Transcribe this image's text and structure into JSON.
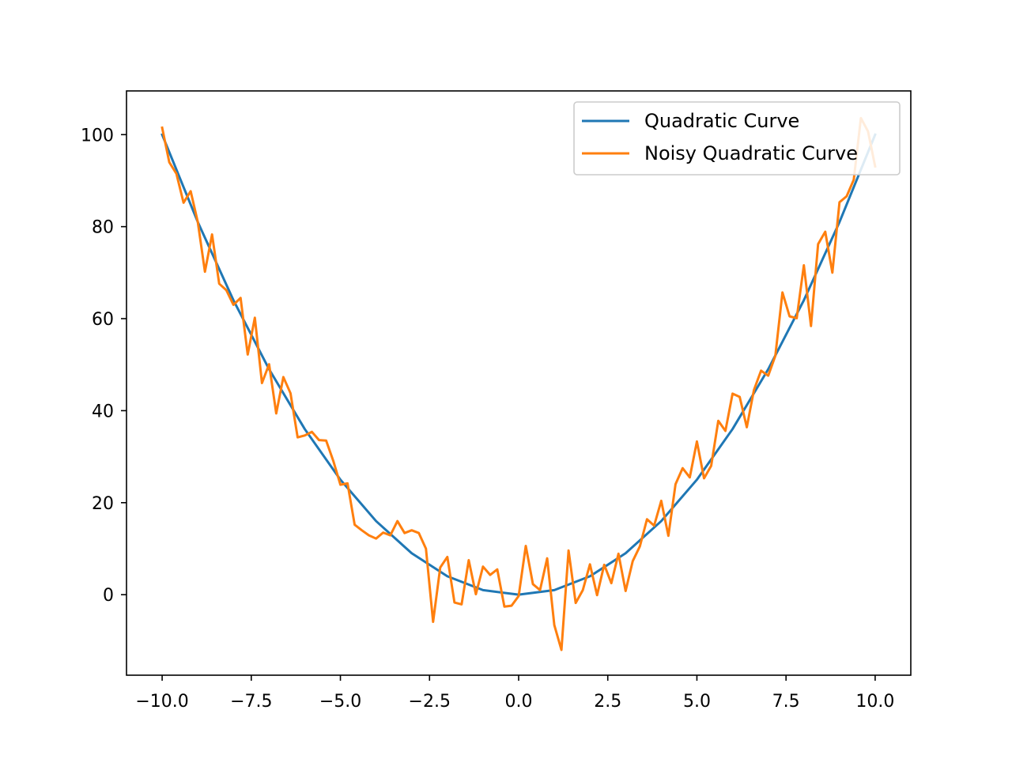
{
  "chart_data": {
    "type": "line",
    "title": "",
    "xlabel": "",
    "ylabel": "",
    "xlim": [
      -11.0,
      11.0
    ],
    "ylim": [
      -17.5,
      109.5
    ],
    "xticks": [
      -10.0,
      -7.5,
      -5.0,
      -2.5,
      0.0,
      2.5,
      5.0,
      7.5,
      10.0
    ],
    "xtick_labels": [
      "−10.0",
      "−7.5",
      "−5.0",
      "−2.5",
      "0.0",
      "2.5",
      "5.0",
      "7.5",
      "10.0"
    ],
    "yticks": [
      0,
      20,
      40,
      60,
      80,
      100
    ],
    "ytick_labels": [
      "0",
      "20",
      "40",
      "60",
      "80",
      "100"
    ],
    "grid": false,
    "legend_position": "upper-right",
    "series": [
      {
        "name": "Quadratic Curve",
        "color": "#1f77b4",
        "x": [
          -10.0,
          -9.0,
          -8.0,
          -7.0,
          -6.0,
          -5.0,
          -4.0,
          -3.0,
          -2.0,
          -1.0,
          0.0,
          1.0,
          2.0,
          3.0,
          4.0,
          5.0,
          6.0,
          7.0,
          8.0,
          9.0,
          10.0
        ],
        "y": [
          100,
          81,
          64,
          49,
          36,
          25,
          16,
          9,
          4,
          1,
          0,
          1,
          4,
          9,
          16,
          25,
          36,
          49,
          64,
          81,
          100
        ]
      },
      {
        "name": "Noisy Quadratic Curve",
        "color": "#ff7f0e",
        "x": [
          -10.0,
          -9.8,
          -9.6,
          -9.4,
          -9.2,
          -9.0,
          -8.8,
          -8.6,
          -8.4,
          -8.2,
          -8.0,
          -7.8,
          -7.6,
          -7.4,
          -7.2,
          -7.0,
          -6.8,
          -6.6,
          -6.4,
          -6.2,
          -6.0,
          -5.8,
          -5.6,
          -5.4,
          -5.2,
          -5.0,
          -4.8,
          -4.6,
          -4.4,
          -4.2,
          -4.0,
          -3.8,
          -3.6,
          -3.4,
          -3.2,
          -3.0,
          -2.8,
          -2.6,
          -2.4,
          -2.2,
          -2.0,
          -1.8,
          -1.6,
          -1.4,
          -1.2,
          -1.0,
          -0.8,
          -0.6,
          -0.4,
          -0.2,
          0.0,
          0.2,
          0.4,
          0.6,
          0.8,
          1.0,
          1.2,
          1.4,
          1.6,
          1.8,
          2.0,
          2.2,
          2.4,
          2.6,
          2.8,
          3.0,
          3.2,
          3.4,
          3.6,
          3.8,
          4.0,
          4.2,
          4.4,
          4.6,
          4.8,
          5.0,
          5.2,
          5.4,
          5.6,
          5.8,
          6.0,
          6.2,
          6.4,
          6.6,
          6.8,
          7.0,
          7.2,
          7.4,
          7.6,
          7.8,
          8.0,
          8.2,
          8.4,
          8.6,
          8.8,
          9.0,
          9.2,
          9.4,
          9.6,
          9.8,
          10.0
        ],
        "y": [
          101.5,
          94.0,
          91.5,
          85.2,
          87.7,
          81.0,
          70.2,
          78.3,
          67.6,
          66.2,
          63.0,
          64.5,
          52.2,
          60.2,
          46.0,
          50.1,
          39.4,
          47.3,
          43.8,
          34.2,
          34.6,
          35.4,
          33.6,
          33.5,
          29.1,
          23.9,
          24.2,
          15.2,
          14.0,
          12.9,
          12.2,
          13.5,
          12.9,
          16.0,
          13.4,
          14.0,
          13.4,
          10.0,
          -5.9,
          5.9,
          8.2,
          -1.7,
          -2.1,
          7.5,
          0.1,
          6.1,
          4.3,
          5.5,
          -2.6,
          -2.4,
          -0.3,
          10.6,
          2.3,
          1.0,
          7.9,
          -6.6,
          -12.0,
          9.6,
          -1.8,
          1.0,
          6.6,
          -0.1,
          6.5,
          2.5,
          8.9,
          0.8,
          7.3,
          10.5,
          16.4,
          15.0,
          20.4,
          12.8,
          24.0,
          27.5,
          25.5,
          33.3,
          25.3,
          28.0,
          37.8,
          35.6,
          43.7,
          43.0,
          36.4,
          44.5,
          48.7,
          47.6,
          51.9,
          65.7,
          60.5,
          60.1,
          71.6,
          58.4,
          76.2,
          78.9,
          70.0,
          85.3,
          86.6,
          90.2,
          103.6,
          100.7,
          93.1
        ]
      }
    ]
  }
}
